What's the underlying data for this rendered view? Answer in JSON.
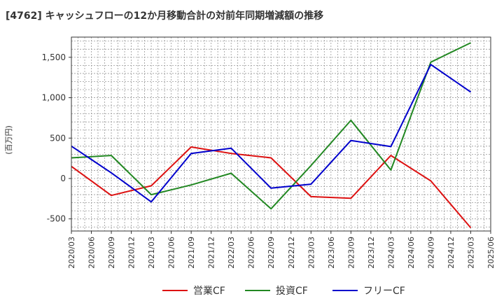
{
  "chart_data": {
    "type": "line",
    "title": "[4762]  キャッシュフローの12か月移動合計の対前年同期増減額の推移",
    "ylabel": "(百万円)",
    "xlabel": "",
    "ylim": [
      -650,
      1750
    ],
    "yticks": [
      -500,
      0,
      500,
      1000,
      1500
    ],
    "ytick_labels": [
      "-500",
      "0",
      "500",
      "1,000",
      "1,500"
    ],
    "categories": [
      "2020/03",
      "2020/06",
      "2020/09",
      "2020/12",
      "2021/03",
      "2021/06",
      "2021/09",
      "2021/12",
      "2022/03",
      "2022/06",
      "2022/09",
      "2022/12",
      "2023/03",
      "2023/06",
      "2023/09",
      "2023/12",
      "2024/03",
      "2024/06",
      "2024/09",
      "2024/12",
      "2025/03",
      "2025/06"
    ],
    "grid": true,
    "legend_position": "bottom",
    "series": [
      {
        "name": "営業CF",
        "color": "#dd1111",
        "points": [
          [
            0,
            150
          ],
          [
            2,
            -210
          ],
          [
            4,
            -90
          ],
          [
            6,
            390
          ],
          [
            8,
            310
          ],
          [
            10,
            255
          ],
          [
            12,
            -225
          ],
          [
            14,
            -245
          ],
          [
            16,
            285
          ],
          [
            18,
            -30
          ],
          [
            20,
            -610
          ]
        ]
      },
      {
        "name": "投資CF",
        "color": "#228822",
        "points": [
          [
            0,
            255
          ],
          [
            2,
            285
          ],
          [
            4,
            -200
          ],
          [
            6,
            -80
          ],
          [
            8,
            65
          ],
          [
            10,
            -375
          ],
          [
            12,
            160
          ],
          [
            14,
            720
          ],
          [
            16,
            105
          ],
          [
            18,
            1440
          ],
          [
            20,
            1680
          ]
        ]
      },
      {
        "name": "フリーCF",
        "color": "#0000cc",
        "points": [
          [
            0,
            400
          ],
          [
            2,
            70
          ],
          [
            4,
            -290
          ],
          [
            6,
            310
          ],
          [
            8,
            375
          ],
          [
            10,
            -120
          ],
          [
            12,
            -70
          ],
          [
            14,
            470
          ],
          [
            16,
            395
          ],
          [
            18,
            1410
          ],
          [
            20,
            1070
          ]
        ]
      }
    ]
  }
}
